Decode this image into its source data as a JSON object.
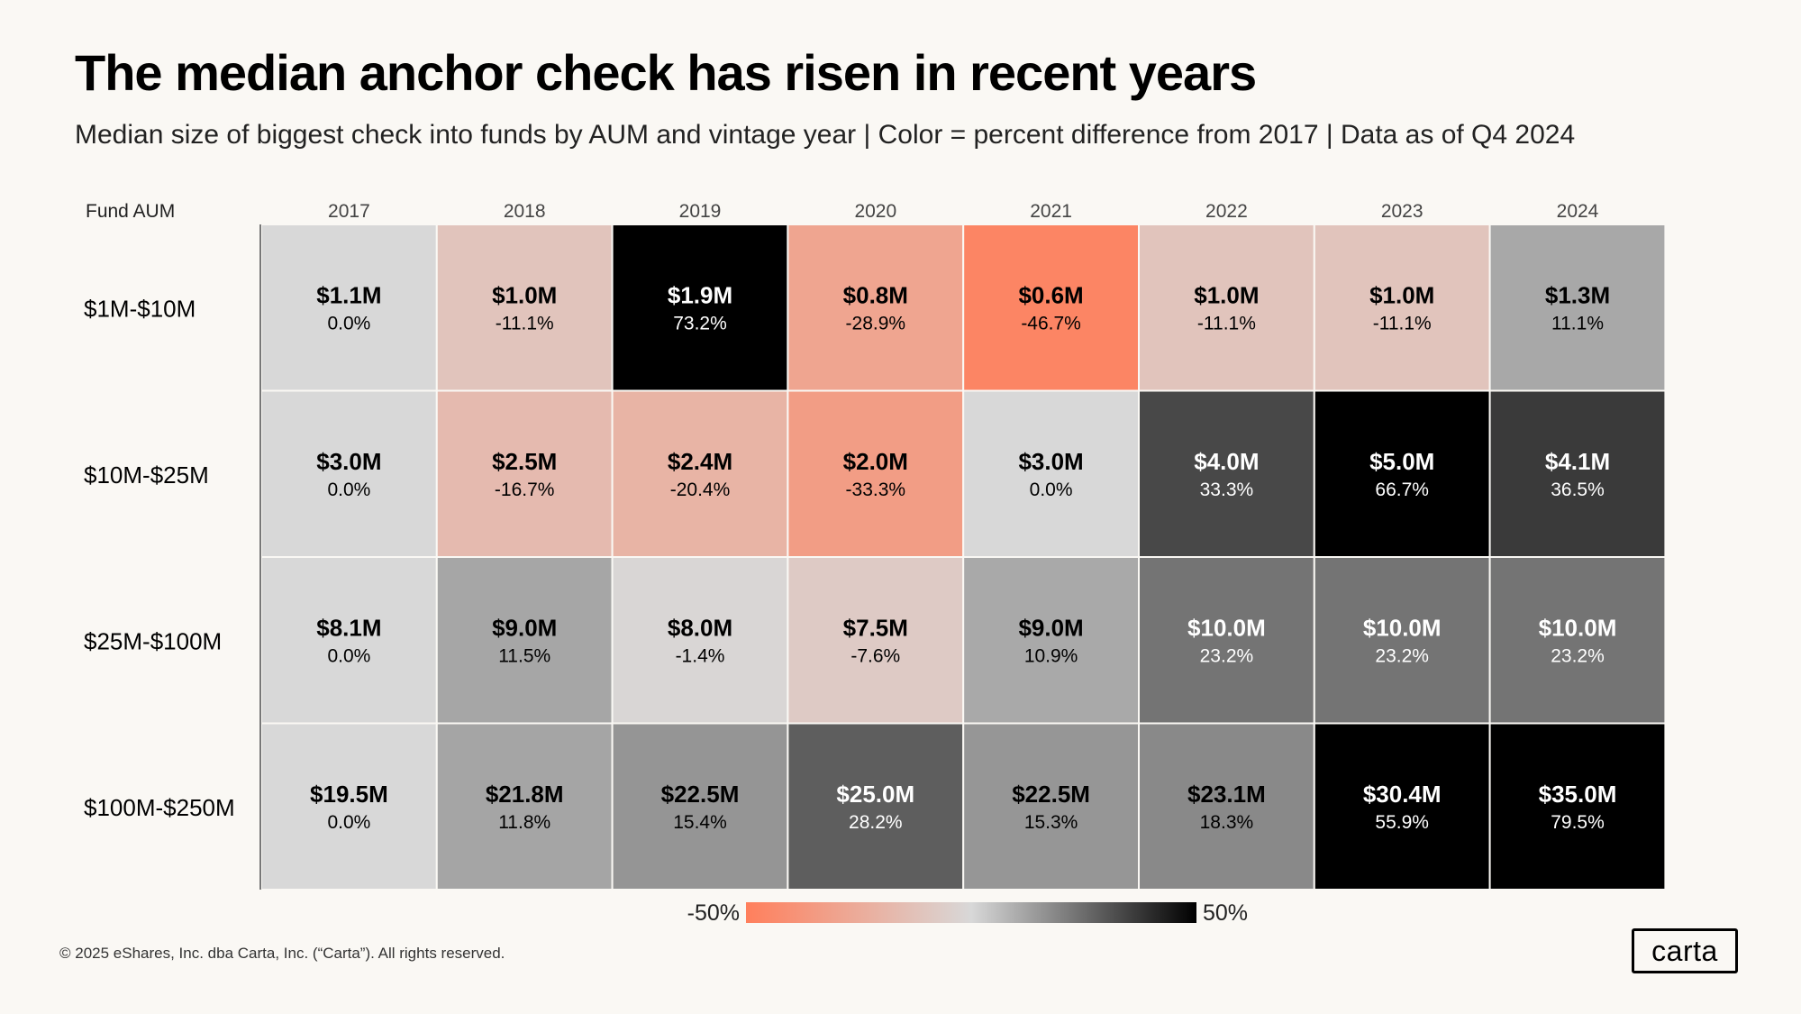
{
  "title": "The median anchor check has risen in recent years",
  "subtitle": "Median size of biggest check  into funds by AUM and vintage year | Color = percent difference from 2017 | Data as of Q4 2024",
  "footer": "© 2025 eShares, Inc. dba Carta, Inc. (“Carta”). All rights reserved.",
  "logo": "carta",
  "chart_data": {
    "type": "heatmap",
    "row_header": "Fund AUM",
    "columns": [
      "2017",
      "2018",
      "2019",
      "2020",
      "2021",
      "2022",
      "2023",
      "2024"
    ],
    "rows": [
      {
        "label": "$1M-$10M",
        "values": [
          "$1.1M",
          "$1.0M",
          "$1.9M",
          "$0.8M",
          "$0.6M",
          "$1.0M",
          "$1.0M",
          "$1.3M"
        ],
        "pct_labels": [
          "0.0%",
          "-11.1%",
          "73.2%",
          "-28.9%",
          "-46.7%",
          "-11.1%",
          "-11.1%",
          "11.1%"
        ],
        "pct": [
          0.0,
          -11.1,
          73.2,
          -28.9,
          -46.7,
          -11.1,
          -11.1,
          11.1
        ]
      },
      {
        "label": "$10M-$25M",
        "values": [
          "$3.0M",
          "$2.5M",
          "$2.4M",
          "$2.0M",
          "$3.0M",
          "$4.0M",
          "$5.0M",
          "$4.1M"
        ],
        "pct_labels": [
          "0.0%",
          "-16.7%",
          "-20.4%",
          "-33.3%",
          "0.0%",
          "33.3%",
          "66.7%",
          "36.5%"
        ],
        "pct": [
          0.0,
          -16.7,
          -20.4,
          -33.3,
          0.0,
          33.3,
          66.7,
          36.5
        ]
      },
      {
        "label": "$25M-$100M",
        "values": [
          "$8.1M",
          "$9.0M",
          "$8.0M",
          "$7.5M",
          "$9.0M",
          "$10.0M",
          "$10.0M",
          "$10.0M"
        ],
        "pct_labels": [
          "0.0%",
          "11.5%",
          "-1.4%",
          "-7.6%",
          "10.9%",
          "23.2%",
          "23.2%",
          "23.2%"
        ],
        "pct": [
          0.0,
          11.5,
          -1.4,
          -7.6,
          10.9,
          23.2,
          23.2,
          23.2
        ]
      },
      {
        "label": "$100M-$250M",
        "values": [
          "$19.5M",
          "$21.8M",
          "$22.5M",
          "$25.0M",
          "$22.5M",
          "$23.1M",
          "$30.4M",
          "$35.0M"
        ],
        "pct_labels": [
          "0.0%",
          "11.8%",
          "15.4%",
          "28.2%",
          "15.3%",
          "18.3%",
          "55.9%",
          "79.5%"
        ],
        "pct": [
          0.0,
          11.8,
          15.4,
          28.2,
          15.3,
          18.3,
          55.9,
          79.5
        ]
      }
    ],
    "color_scale": {
      "min": -50,
      "max": 50,
      "min_label": "-50%",
      "max_label": "50%",
      "low_color": "#ff7f5c",
      "mid_color": "#d8d8d8",
      "high_color": "#000000"
    }
  }
}
